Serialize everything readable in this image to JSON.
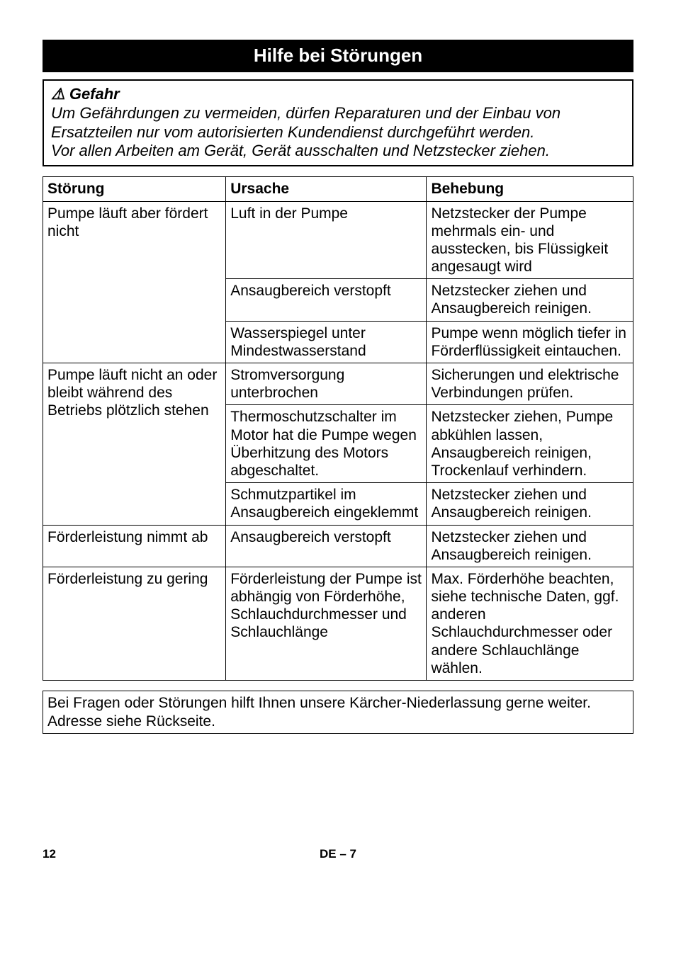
{
  "heading": "Hilfe bei Störungen",
  "danger": {
    "title": "⚠ Gefahr",
    "p1": "Um Gefährdungen zu vermeiden, dürfen Reparaturen und der Einbau von Ersatzteilen nur vom autorisierten Kundendienst durchgeführt werden.",
    "p2": "Vor allen Arbeiten am Gerät, Gerät ausschalten und Netzstecker ziehen."
  },
  "table": {
    "headers": {
      "stoerung": "Störung",
      "ursache": "Ursache",
      "behebung": "Behebung"
    },
    "rows": {
      "r1": {
        "stoerung": "Pumpe läuft aber fördert nicht",
        "ursache": "Luft in der Pumpe",
        "behebung": "Netzstecker der Pumpe mehrmals ein- und ausstecken, bis Flüssigkeit angesaugt wird"
      },
      "r2": {
        "ursache": "Ansaugbereich verstopft",
        "behebung": "Netzstecker ziehen und Ansaugbereich reinigen."
      },
      "r3": {
        "ursache": "Wasserspiegel unter Mindestwasserstand",
        "behebung": "Pumpe wenn möglich tiefer in Förderflüssigkeit eintauchen."
      },
      "r4": {
        "stoerung": "Pumpe läuft nicht an oder bleibt während des Betriebs plötzlich stehen",
        "ursache": "Stromversorgung unterbrochen",
        "behebung": "Sicherungen und elektrische Verbindungen prüfen."
      },
      "r5": {
        "ursache": "Thermoschutzschalter im Motor hat die Pumpe wegen Überhitzung des Motors abgeschaltet.",
        "behebung": "Netzstecker ziehen, Pumpe abkühlen lassen, Ansaugbereich reinigen, Trockenlauf verhindern."
      },
      "r6": {
        "ursache": "Schmutzpartikel im Ansaugbereich eingeklemmt",
        "behebung": "Netzstecker ziehen und Ansaugbereich reinigen."
      },
      "r7": {
        "stoerung": "Förderleistung nimmt ab",
        "ursache": "Ansaugbereich verstopft",
        "behebung": "Netzstecker ziehen und Ansaugbereich reinigen."
      },
      "r8": {
        "stoerung": "Förderleistung zu gering",
        "ursache": "Förderleistung der Pumpe ist abhängig von Förderhöhe, Schlauchdurchmesser und Schlauchlänge",
        "behebung": "Max. Förderhöhe beachten, siehe technische Daten, ggf. anderen Schlauchdurchmesser oder andere Schlauchlänge wählen."
      }
    }
  },
  "contact": "Bei Fragen oder Störungen hilft Ihnen unsere Kärcher-Niederlassung gerne weiter. Adresse siehe Rückseite.",
  "footer": {
    "page": "12",
    "center": "DE – 7"
  }
}
